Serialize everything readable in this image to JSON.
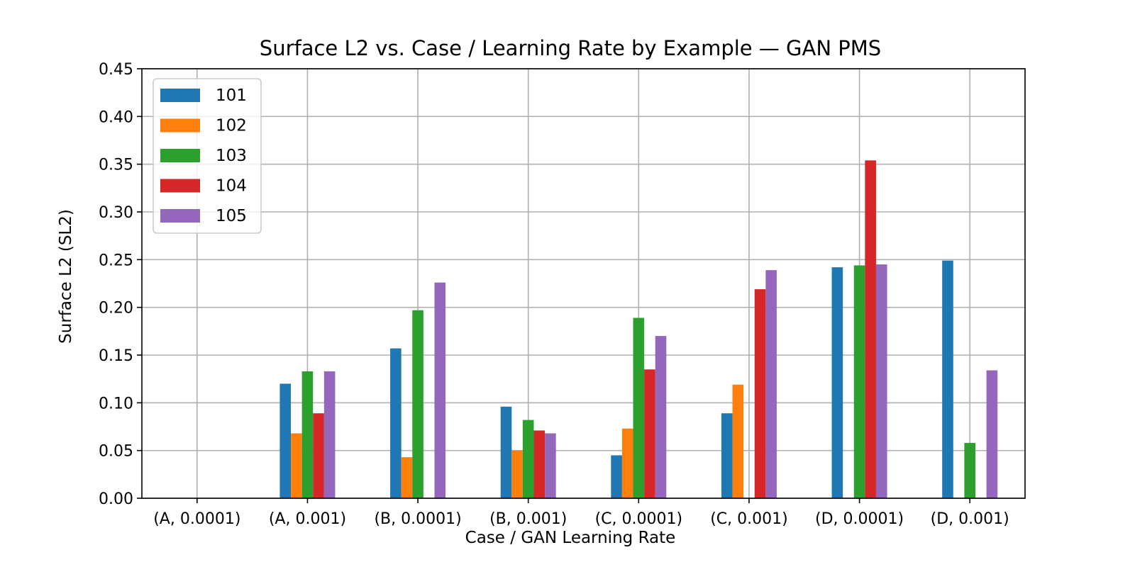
{
  "chart_data": {
    "type": "bar",
    "title": "Surface L2 vs. Case / Learning Rate by Example — GAN PMS",
    "xlabel": "Case / GAN Learning Rate",
    "ylabel": "Surface L2 (SL2)",
    "ylim": [
      0,
      0.45
    ],
    "yticks": [
      "0.00",
      "0.05",
      "0.10",
      "0.15",
      "0.20",
      "0.25",
      "0.30",
      "0.35",
      "0.40",
      "0.45"
    ],
    "grid": true,
    "legend_position": "upper-left",
    "categories": [
      "(A, 0.0001)",
      "(A, 0.001)",
      "(B, 0.0001)",
      "(B, 0.001)",
      "(C, 0.0001)",
      "(C, 0.001)",
      "(D, 0.0001)",
      "(D, 0.001)"
    ],
    "series": [
      {
        "name": "101",
        "color": "#1f77b4",
        "values": [
          null,
          0.12,
          0.157,
          0.096,
          0.045,
          0.089,
          0.242,
          0.249
        ]
      },
      {
        "name": "102",
        "color": "#ff7f0e",
        "values": [
          null,
          0.068,
          0.043,
          0.05,
          0.073,
          0.119,
          null,
          null
        ]
      },
      {
        "name": "103",
        "color": "#2ca02c",
        "values": [
          null,
          0.133,
          0.197,
          0.082,
          0.189,
          null,
          0.244,
          0.058
        ]
      },
      {
        "name": "104",
        "color": "#d62728",
        "values": [
          null,
          0.089,
          null,
          0.071,
          0.135,
          0.219,
          0.354,
          null
        ]
      },
      {
        "name": "105",
        "color": "#9467bd",
        "values": [
          null,
          0.133,
          0.226,
          0.068,
          0.17,
          0.239,
          0.245,
          0.134
        ]
      }
    ]
  }
}
